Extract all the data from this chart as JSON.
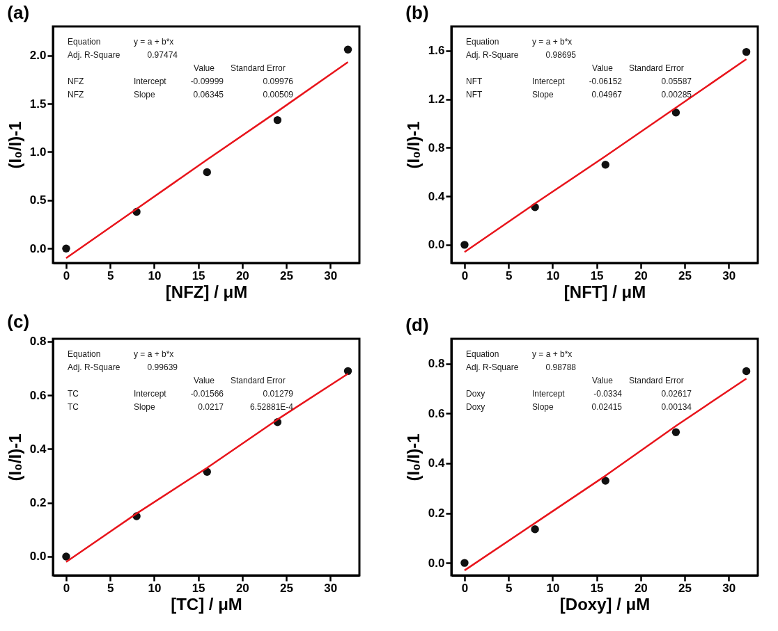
{
  "chart_data": [
    {
      "type": "scatter",
      "title": "(a)",
      "xlabel": "[NFZ] / μM",
      "ylabel": "(I₀/I)-1",
      "xlim": [
        -1.5,
        33.3
      ],
      "ylim": [
        -0.15,
        2.3
      ],
      "xticks": [
        0,
        5,
        10,
        15,
        20,
        25,
        30
      ],
      "yticks": [
        {
          "value": 0,
          "label": "0.0"
        },
        {
          "value": 0.5,
          "label": "0.5"
        },
        {
          "value": 1,
          "label": "1.0"
        },
        {
          "value": 1.5,
          "label": "1.5"
        },
        {
          "value": 2,
          "label": "2.0"
        }
      ],
      "x": [
        0,
        8,
        16,
        24,
        32
      ],
      "series": [
        {
          "color": "#111111",
          "values": [
            0,
            0.38,
            0.79,
            1.33,
            2.06
          ]
        },
        {
          "type": "line",
          "color": "#e8141b",
          "values": [
            -0.1,
            0.41,
            0.92,
            1.42,
            1.93
          ]
        }
      ],
      "annotations": [
        "Equation",
        "y = a + b*x",
        "Adj. R-Square",
        "0.97474",
        "Value",
        "Standard Error",
        "NFZ",
        "Intercept",
        "-0.09999",
        "0.09976",
        "NFZ",
        "Slope",
        "0.06345",
        "0.00509"
      ]
    },
    {
      "type": "scatter",
      "title": "(b)",
      "xlabel": "[NFT] / μM",
      "ylabel": "(I₀/I)-1",
      "xlim": [
        -1.5,
        33.3
      ],
      "ylim": [
        -0.15,
        1.8
      ],
      "xticks": [
        0,
        5,
        10,
        15,
        20,
        25,
        30
      ],
      "yticks": [
        {
          "value": 0,
          "label": "0.0"
        },
        {
          "value": 0.4,
          "label": "0.4"
        },
        {
          "value": 0.8,
          "label": "0.8"
        },
        {
          "value": 1.2,
          "label": "1.2"
        },
        {
          "value": 1.6,
          "label": "1.6"
        }
      ],
      "x": [
        0,
        8,
        16,
        24,
        32
      ],
      "series": [
        {
          "color": "#111111",
          "values": [
            0,
            0.31,
            0.66,
            1.09,
            1.59
          ]
        },
        {
          "type": "line",
          "color": "#e8141b",
          "values": [
            -0.06,
            0.34,
            0.73,
            1.13,
            1.53
          ]
        }
      ],
      "annotations": [
        "Equation",
        "y = a + b*x",
        "Adj. R-Square",
        "0.98695",
        "Value",
        "Standard Error",
        "NFT",
        "Intercept",
        "-0.06152",
        "0.05587",
        "NFT",
        "Slope",
        "0.04967",
        "0.00285"
      ]
    },
    {
      "type": "scatter",
      "title": "(c)",
      "xlabel": "[TC] / μM",
      "ylabel": "(I₀/I)-1",
      "xlim": [
        -1.5,
        33.3
      ],
      "ylim": [
        -0.07,
        0.81
      ],
      "xticks": [
        0,
        5,
        10,
        15,
        20,
        25,
        30
      ],
      "yticks": [
        {
          "value": 0,
          "label": "0.0"
        },
        {
          "value": 0.2,
          "label": "0.2"
        },
        {
          "value": 0.4,
          "label": "0.4"
        },
        {
          "value": 0.6,
          "label": "0.6"
        },
        {
          "value": 0.8,
          "label": "0.8"
        }
      ],
      "x": [
        0,
        8,
        16,
        24,
        32
      ],
      "series": [
        {
          "color": "#111111",
          "values": [
            0,
            0.15,
            0.315,
            0.5,
            0.69
          ]
        },
        {
          "type": "line",
          "color": "#e8141b",
          "values": [
            -0.02,
            0.16,
            0.33,
            0.51,
            0.68
          ]
        }
      ],
      "annotations": [
        "Equation",
        "y = a + b*x",
        "Adj. R-Square",
        "0.99639",
        "Value",
        "Standard Error",
        "TC",
        "Intercept",
        "-0.01566",
        "0.01279",
        "TC",
        "Slope",
        "0.0217",
        "6.52881E-4"
      ]
    },
    {
      "type": "scatter",
      "title": "(d)",
      "xlabel": "[Doxy] / μM",
      "ylabel": "(I₀/I)-1",
      "xlim": [
        -1.5,
        33.3
      ],
      "ylim": [
        -0.05,
        0.9
      ],
      "xticks": [
        0,
        5,
        10,
        15,
        20,
        25,
        30
      ],
      "yticks": [
        {
          "value": 0,
          "label": "0.0"
        },
        {
          "value": 0.2,
          "label": "0.2"
        },
        {
          "value": 0.4,
          "label": "0.4"
        },
        {
          "value": 0.6,
          "label": "0.6"
        },
        {
          "value": 0.8,
          "label": "0.8"
        }
      ],
      "x": [
        0,
        8,
        16,
        24,
        32
      ],
      "series": [
        {
          "color": "#111111",
          "values": [
            0,
            0.135,
            0.33,
            0.525,
            0.77
          ]
        },
        {
          "type": "line",
          "color": "#e8141b",
          "values": [
            -0.03,
            0.16,
            0.35,
            0.55,
            0.74
          ]
        }
      ],
      "annotations": [
        "Equation",
        "y = a + b*x",
        "Adj. R-Square",
        "0.98788",
        "Value",
        "Standard Error",
        "Doxy",
        "Intercept",
        "-0.0334",
        "0.02617",
        "Doxy",
        "Slope",
        "0.02415",
        "0.00134"
      ]
    }
  ]
}
